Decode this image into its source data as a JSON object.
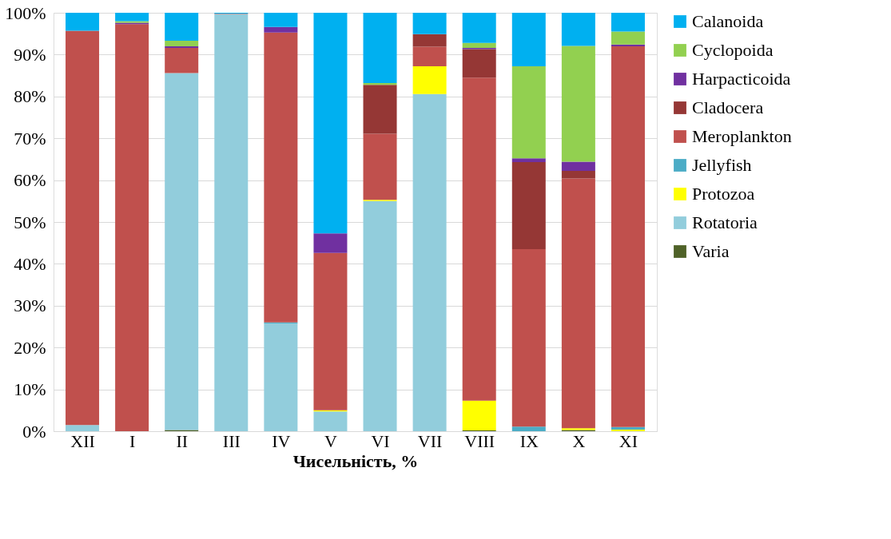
{
  "chart_data": {
    "type": "bar",
    "stacked": true,
    "xlabel": "Чисельність, %",
    "categories": [
      "XII",
      "I",
      "II",
      "III",
      "IV",
      "V",
      "VI",
      "VII",
      "VIII",
      "IX",
      "X",
      "XI"
    ],
    "series": [
      {
        "name": "Varia",
        "color": "#4f6228",
        "values": [
          0,
          0,
          0.3,
          0,
          0,
          0,
          0,
          0,
          0.2,
          0,
          0.3,
          0
        ]
      },
      {
        "name": "Rotatoria",
        "color": "#92cddc",
        "values": [
          1.5,
          0,
          85.3,
          99.7,
          25.7,
          4.7,
          55.0,
          80.6,
          0,
          0,
          0,
          0
        ]
      },
      {
        "name": "Protozoa",
        "color": "#ffff00",
        "values": [
          0,
          0,
          0,
          0,
          0,
          0.3,
          0.3,
          6.6,
          7.1,
          0,
          0.4,
          0.4
        ]
      },
      {
        "name": "Jellyfish",
        "color": "#4bacc6",
        "values": [
          0,
          0,
          0,
          0,
          0.3,
          0,
          0,
          0,
          0,
          1.1,
          0,
          0.6
        ]
      },
      {
        "name": "Meroplankton",
        "color": "#c0504d",
        "values": [
          94.2,
          97.3,
          6.0,
          0.1,
          69.3,
          37.6,
          15.8,
          4.7,
          77.2,
          42.4,
          59.7,
          91.0
        ]
      },
      {
        "name": "Cladocera",
        "color": "#953735",
        "values": [
          0,
          0,
          0,
          0,
          0,
          0,
          11.7,
          3.0,
          6.8,
          20.8,
          1.8,
          0
        ]
      },
      {
        "name": "Harpacticoida",
        "color": "#7030a0",
        "values": [
          0,
          0.3,
          0.4,
          0,
          1.3,
          4.7,
          0,
          0,
          0.3,
          0.9,
          2.2,
          0.4
        ]
      },
      {
        "name": "Cyclopoida",
        "color": "#92d050",
        "values": [
          0,
          0.4,
          1.3,
          0,
          0,
          0,
          0.4,
          0,
          1.2,
          22.0,
          27.7,
          3.1
        ]
      },
      {
        "name": "Calanoida",
        "color": "#00b0f0",
        "values": [
          4.3,
          2.0,
          6.7,
          0.2,
          3.4,
          52.7,
          16.8,
          5.1,
          7.2,
          12.8,
          7.9,
          4.5
        ]
      }
    ],
    "ylim": [
      0,
      100
    ],
    "yticks": [
      {
        "value": 0,
        "label": "0%"
      },
      {
        "value": 10,
        "label": "10%"
      },
      {
        "value": 20,
        "label": "20%"
      },
      {
        "value": 30,
        "label": "30%"
      },
      {
        "value": 40,
        "label": "40%"
      },
      {
        "value": 50,
        "label": "50%"
      },
      {
        "value": 60,
        "label": "60%"
      },
      {
        "value": 70,
        "label": "70%"
      },
      {
        "value": 80,
        "label": "80%"
      },
      {
        "value": 90,
        "label": "90%"
      },
      {
        "value": 100,
        "label": "100%"
      }
    ],
    "grid": "y",
    "legend": "right"
  }
}
